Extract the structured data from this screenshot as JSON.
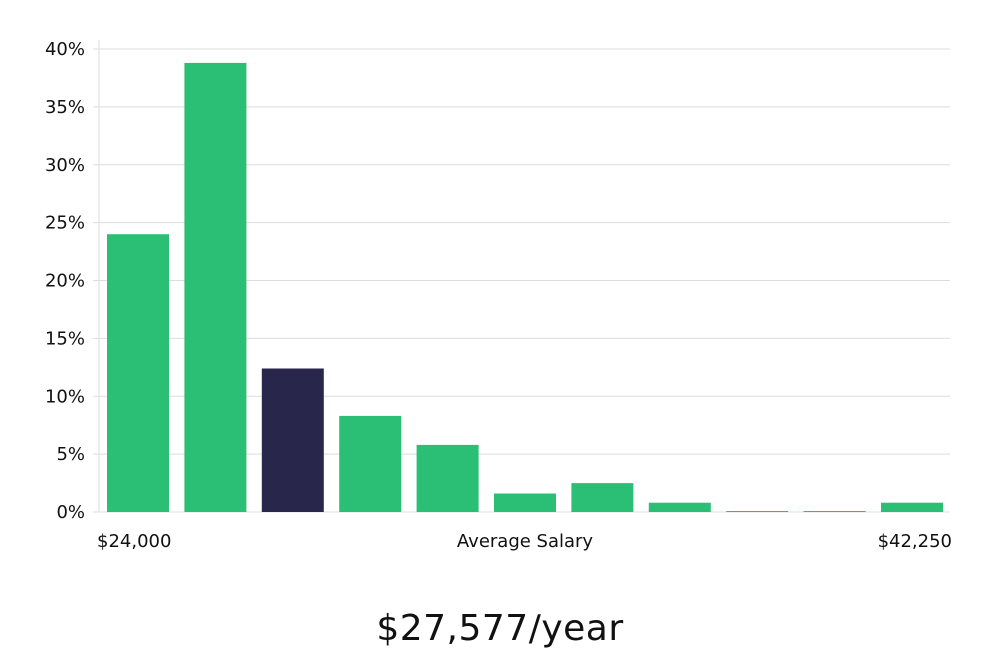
{
  "chart_data": {
    "type": "bar",
    "title": "",
    "xlabel": "Average Salary",
    "ylabel": "",
    "x_range_labels": {
      "min": "$24,000",
      "max": "$42,250"
    },
    "y_ticks": [
      "0%",
      "5%",
      "10%",
      "15%",
      "20%",
      "25%",
      "30%",
      "35%",
      "40%"
    ],
    "ylim": [
      0,
      40
    ],
    "grid": true,
    "legend": "none",
    "values": [
      24.0,
      38.8,
      12.4,
      8.3,
      5.8,
      1.6,
      2.5,
      0.8,
      0.05,
      0.05,
      0.8
    ],
    "highlight_index": 2,
    "colors": {
      "bar": "#2bbf76",
      "highlight": "#28264a",
      "grid": "#dddddd"
    }
  },
  "summary": {
    "salary_text": "$27,577/year"
  }
}
